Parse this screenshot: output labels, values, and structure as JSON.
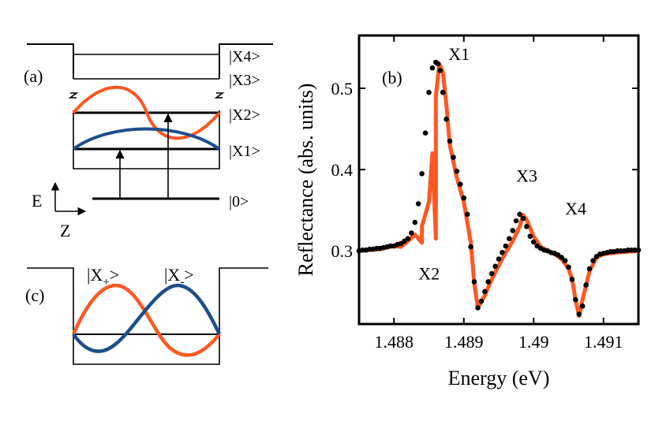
{
  "colors": {
    "orange": "#ff5722",
    "blue": "#1d4e8a",
    "dots": "#000000",
    "frame": "#000000"
  },
  "panel_a": {
    "label": "(a)",
    "levels": [
      "|X4>",
      "|X3>",
      "|X2>",
      "|X1>",
      "|0>"
    ],
    "axis_energy": "E",
    "axis_z": "Z"
  },
  "panel_c": {
    "label": "(c)",
    "state_plus": {
      "prefix": "|X",
      "sub": "+",
      "suffix": ">"
    },
    "state_minus": {
      "prefix": "|X",
      "sub": "-",
      "suffix": ">"
    }
  },
  "chart_data": {
    "type": "line",
    "panel_label": "(b)",
    "xlabel": "Energy (eV)",
    "ylabel": "Reflectance (abs. units)",
    "xlim": [
      1.4875,
      1.4915
    ],
    "ylim": [
      0.21,
      0.565
    ],
    "xticks": [
      1.488,
      1.489,
      1.49,
      1.491
    ],
    "xtick_labels": [
      "1.488",
      "1.489",
      "1.49",
      "1.491"
    ],
    "yticks": [
      0.3,
      0.4,
      0.5
    ],
    "ytick_labels": [
      "0.3",
      "0.4",
      "0.5"
    ],
    "annotations": [
      {
        "text": "X1",
        "x": 1.48878,
        "y": 0.535
      },
      {
        "text": "X2",
        "x": 1.48835,
        "y": 0.265
      },
      {
        "text": "X3",
        "x": 1.48975,
        "y": 0.385
      },
      {
        "text": "X4",
        "x": 1.49045,
        "y": 0.345
      }
    ],
    "series": [
      {
        "name": "fit",
        "style": "line",
        "x": [
          1.4875,
          1.4878,
          1.4881,
          1.4884,
          1.4886,
          1.4878,
          1.488,
          1.4882,
          1.4883,
          1.4884,
          1.4885,
          1.48855,
          1.4886,
          1.48865,
          1.4887,
          1.48875,
          1.4888,
          1.4889,
          1.489,
          1.4891,
          1.48915,
          1.4892,
          1.4893,
          1.4894,
          1.4895,
          1.4896,
          1.4897,
          1.4898,
          1.48985,
          1.4899,
          1.49,
          1.4901,
          1.4902,
          1.4903,
          1.4904,
          1.4905,
          1.49055,
          1.4906,
          1.49065,
          1.4907,
          1.4908,
          1.4909,
          1.491,
          1.4912,
          1.4915
        ],
        "y": [
          0.3,
          0.302,
          0.305,
          0.31,
          0.315,
          0.302,
          0.306,
          0.312,
          0.32,
          0.33,
          0.36,
          0.42,
          0.49,
          0.53,
          0.52,
          0.48,
          0.43,
          0.39,
          0.36,
          0.31,
          0.26,
          0.23,
          0.245,
          0.265,
          0.282,
          0.298,
          0.312,
          0.33,
          0.344,
          0.338,
          0.318,
          0.305,
          0.3,
          0.296,
          0.29,
          0.278,
          0.265,
          0.24,
          0.22,
          0.24,
          0.275,
          0.292,
          0.296,
          0.298,
          0.3
        ]
      },
      {
        "name": "data",
        "style": "points",
        "x": [
          1.4875,
          1.48755,
          1.4876,
          1.48765,
          1.4877,
          1.48775,
          1.4878,
          1.48785,
          1.4879,
          1.48795,
          1.488,
          1.48805,
          1.4881,
          1.48815,
          1.4882,
          1.48825,
          1.4883,
          1.48835,
          1.4884,
          1.48845,
          1.4885,
          1.48855,
          1.4886,
          1.48863,
          1.48866,
          1.4887,
          1.48875,
          1.4888,
          1.48885,
          1.4889,
          1.48895,
          1.489,
          1.48905,
          1.4891,
          1.48915,
          1.4892,
          1.48925,
          1.4893,
          1.48935,
          1.4894,
          1.48945,
          1.4895,
          1.48955,
          1.4896,
          1.48965,
          1.4897,
          1.48975,
          1.4898,
          1.48985,
          1.4899,
          1.48995,
          1.49,
          1.49005,
          1.4901,
          1.49015,
          1.4902,
          1.49025,
          1.4903,
          1.49035,
          1.4904,
          1.49045,
          1.4905,
          1.49055,
          1.4906,
          1.49065,
          1.4907,
          1.49075,
          1.4908,
          1.49085,
          1.4909,
          1.49095,
          1.491,
          1.49105,
          1.4911,
          1.49115,
          1.4912,
          1.49125,
          1.4913,
          1.49135,
          1.4914,
          1.49145,
          1.4915
        ],
        "y": [
          0.3,
          0.301,
          0.301,
          0.302,
          0.302,
          0.303,
          0.303,
          0.304,
          0.305,
          0.306,
          0.306,
          0.308,
          0.309,
          0.312,
          0.315,
          0.322,
          0.335,
          0.358,
          0.395,
          0.445,
          0.495,
          0.525,
          0.532,
          0.53,
          0.522,
          0.495,
          0.462,
          0.435,
          0.415,
          0.398,
          0.382,
          0.365,
          0.345,
          0.305,
          0.262,
          0.23,
          0.238,
          0.25,
          0.262,
          0.272,
          0.281,
          0.29,
          0.298,
          0.306,
          0.315,
          0.325,
          0.337,
          0.345,
          0.34,
          0.33,
          0.318,
          0.311,
          0.306,
          0.303,
          0.301,
          0.3,
          0.298,
          0.297,
          0.295,
          0.292,
          0.288,
          0.28,
          0.265,
          0.24,
          0.222,
          0.232,
          0.258,
          0.278,
          0.288,
          0.293,
          0.296,
          0.297,
          0.298,
          0.299,
          0.299,
          0.3,
          0.3,
          0.3,
          0.301,
          0.301,
          0.301,
          0.301
        ]
      }
    ]
  }
}
